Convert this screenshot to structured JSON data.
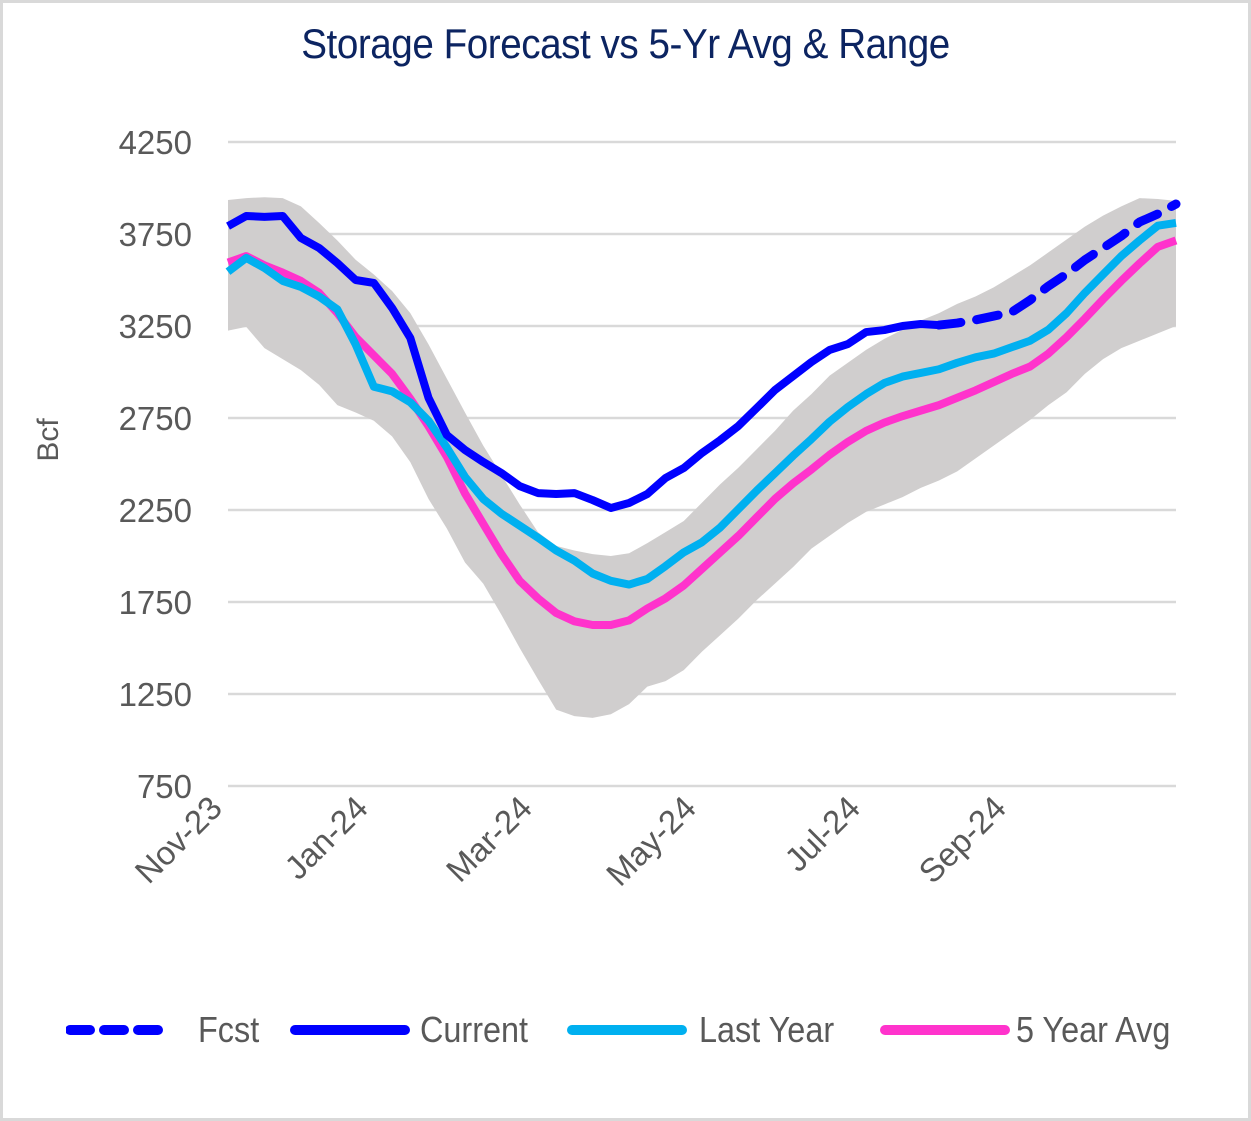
{
  "chart_data": {
    "type": "line",
    "title": "Storage Forecast vs 5-Yr Avg & Range",
    "xlabel": "",
    "ylabel": "Bcf",
    "ylim": [
      750,
      4250
    ],
    "yticks": [
      4250,
      3750,
      3250,
      2750,
      2250,
      1750,
      1250,
      750
    ],
    "ytick_labels": [
      "4250",
      "3750",
      "3250",
      "2750",
      "2250",
      "1750",
      "1250",
      "750"
    ],
    "xtick_labels": [
      "Nov-23",
      "Jan-24",
      "Mar-24",
      "May-24",
      "Jul-24",
      "Sep-24"
    ],
    "xtick_week_index": [
      0,
      8,
      17,
      26,
      35,
      43
    ],
    "n_weeks": 53,
    "grid": true,
    "legend_position": "bottom",
    "series": [
      {
        "name": "Current",
        "color": "#0000ff",
        "style": "solid",
        "start_index": 0,
        "values": [
          3793,
          3848,
          3843,
          3848,
          3728,
          3674,
          3592,
          3500,
          3484,
          3348,
          3185,
          2859,
          2658,
          2576,
          2511,
          2451,
          2380,
          2342,
          2337,
          2342,
          2304,
          2261,
          2288,
          2337,
          2424,
          2478,
          2560,
          2630,
          2707,
          2804,
          2902,
          2978,
          3054,
          3120,
          3152,
          3217,
          3228,
          3250,
          3261,
          3255
        ]
      },
      {
        "name": "Fcst",
        "color": "#0000ff",
        "style": "dashed",
        "start_index": 39,
        "values": [
          3255,
          3266,
          3283,
          3304,
          3326,
          3391,
          3467,
          3533,
          3609,
          3674,
          3739,
          3815,
          3859,
          3913
        ]
      },
      {
        "name": "Last Year",
        "color": "#00b0f0",
        "style": "solid",
        "start_index": 0,
        "values": [
          3545,
          3620,
          3565,
          3495,
          3462,
          3410,
          3340,
          3150,
          2920,
          2895,
          2835,
          2735,
          2590,
          2430,
          2310,
          2230,
          2165,
          2100,
          2030,
          1975,
          1905,
          1865,
          1845,
          1875,
          1945,
          2020,
          2075,
          2155,
          2255,
          2355,
          2450,
          2545,
          2635,
          2730,
          2810,
          2880,
          2940,
          2975,
          2995,
          3015,
          3050,
          3080,
          3100,
          3135,
          3170,
          3230,
          3320,
          3430,
          3530,
          3630,
          3715,
          3795,
          3810
        ]
      },
      {
        "name": "5 Year Avg",
        "color": "#ff33cc",
        "style": "solid",
        "start_index": 0,
        "values": [
          3595,
          3630,
          3580,
          3540,
          3495,
          3430,
          3320,
          3190,
          3090,
          2990,
          2855,
          2705,
          2540,
          2340,
          2175,
          2010,
          1865,
          1770,
          1690,
          1645,
          1625,
          1625,
          1650,
          1715,
          1770,
          1840,
          1930,
          2020,
          2110,
          2210,
          2310,
          2395,
          2470,
          2550,
          2620,
          2680,
          2725,
          2760,
          2790,
          2820,
          2860,
          2900,
          2945,
          2990,
          3030,
          3100,
          3190,
          3290,
          3395,
          3495,
          3590,
          3680,
          3715
        ]
      },
      {
        "name": "5-Yr Range",
        "color": "#d0cece",
        "style": "band",
        "start_index": 0,
        "upper": [
          3935,
          3945,
          3950,
          3945,
          3900,
          3810,
          3715,
          3610,
          3530,
          3440,
          3320,
          3150,
          2965,
          2780,
          2600,
          2440,
          2280,
          2130,
          2055,
          2030,
          2010,
          2000,
          2015,
          2070,
          2130,
          2190,
          2290,
          2390,
          2480,
          2580,
          2680,
          2790,
          2880,
          2980,
          3050,
          3120,
          3180,
          3230,
          3280,
          3320,
          3370,
          3410,
          3460,
          3520,
          3580,
          3650,
          3720,
          3790,
          3850,
          3900,
          3945,
          3940,
          3930
        ],
        "lower": [
          3225,
          3245,
          3130,
          3070,
          3010,
          2930,
          2820,
          2780,
          2735,
          2650,
          2510,
          2310,
          2150,
          1965,
          1850,
          1680,
          1500,
          1330,
          1165,
          1130,
          1120,
          1140,
          1195,
          1290,
          1320,
          1380,
          1480,
          1570,
          1660,
          1760,
          1850,
          1940,
          2040,
          2110,
          2180,
          2240,
          2280,
          2320,
          2370,
          2410,
          2460,
          2530,
          2600,
          2670,
          2740,
          2820,
          2890,
          2990,
          3070,
          3130,
          3170,
          3210,
          3250
        ]
      }
    ]
  },
  "legend": [
    {
      "label": "Fcst",
      "color": "#0000ff",
      "style": "dashed"
    },
    {
      "label": "Current",
      "color": "#0000ff",
      "style": "solid"
    },
    {
      "label": "Last Year",
      "color": "#00b0f0",
      "style": "solid"
    },
    {
      "label": "5 Year Avg",
      "color": "#ff33cc",
      "style": "solid"
    }
  ]
}
